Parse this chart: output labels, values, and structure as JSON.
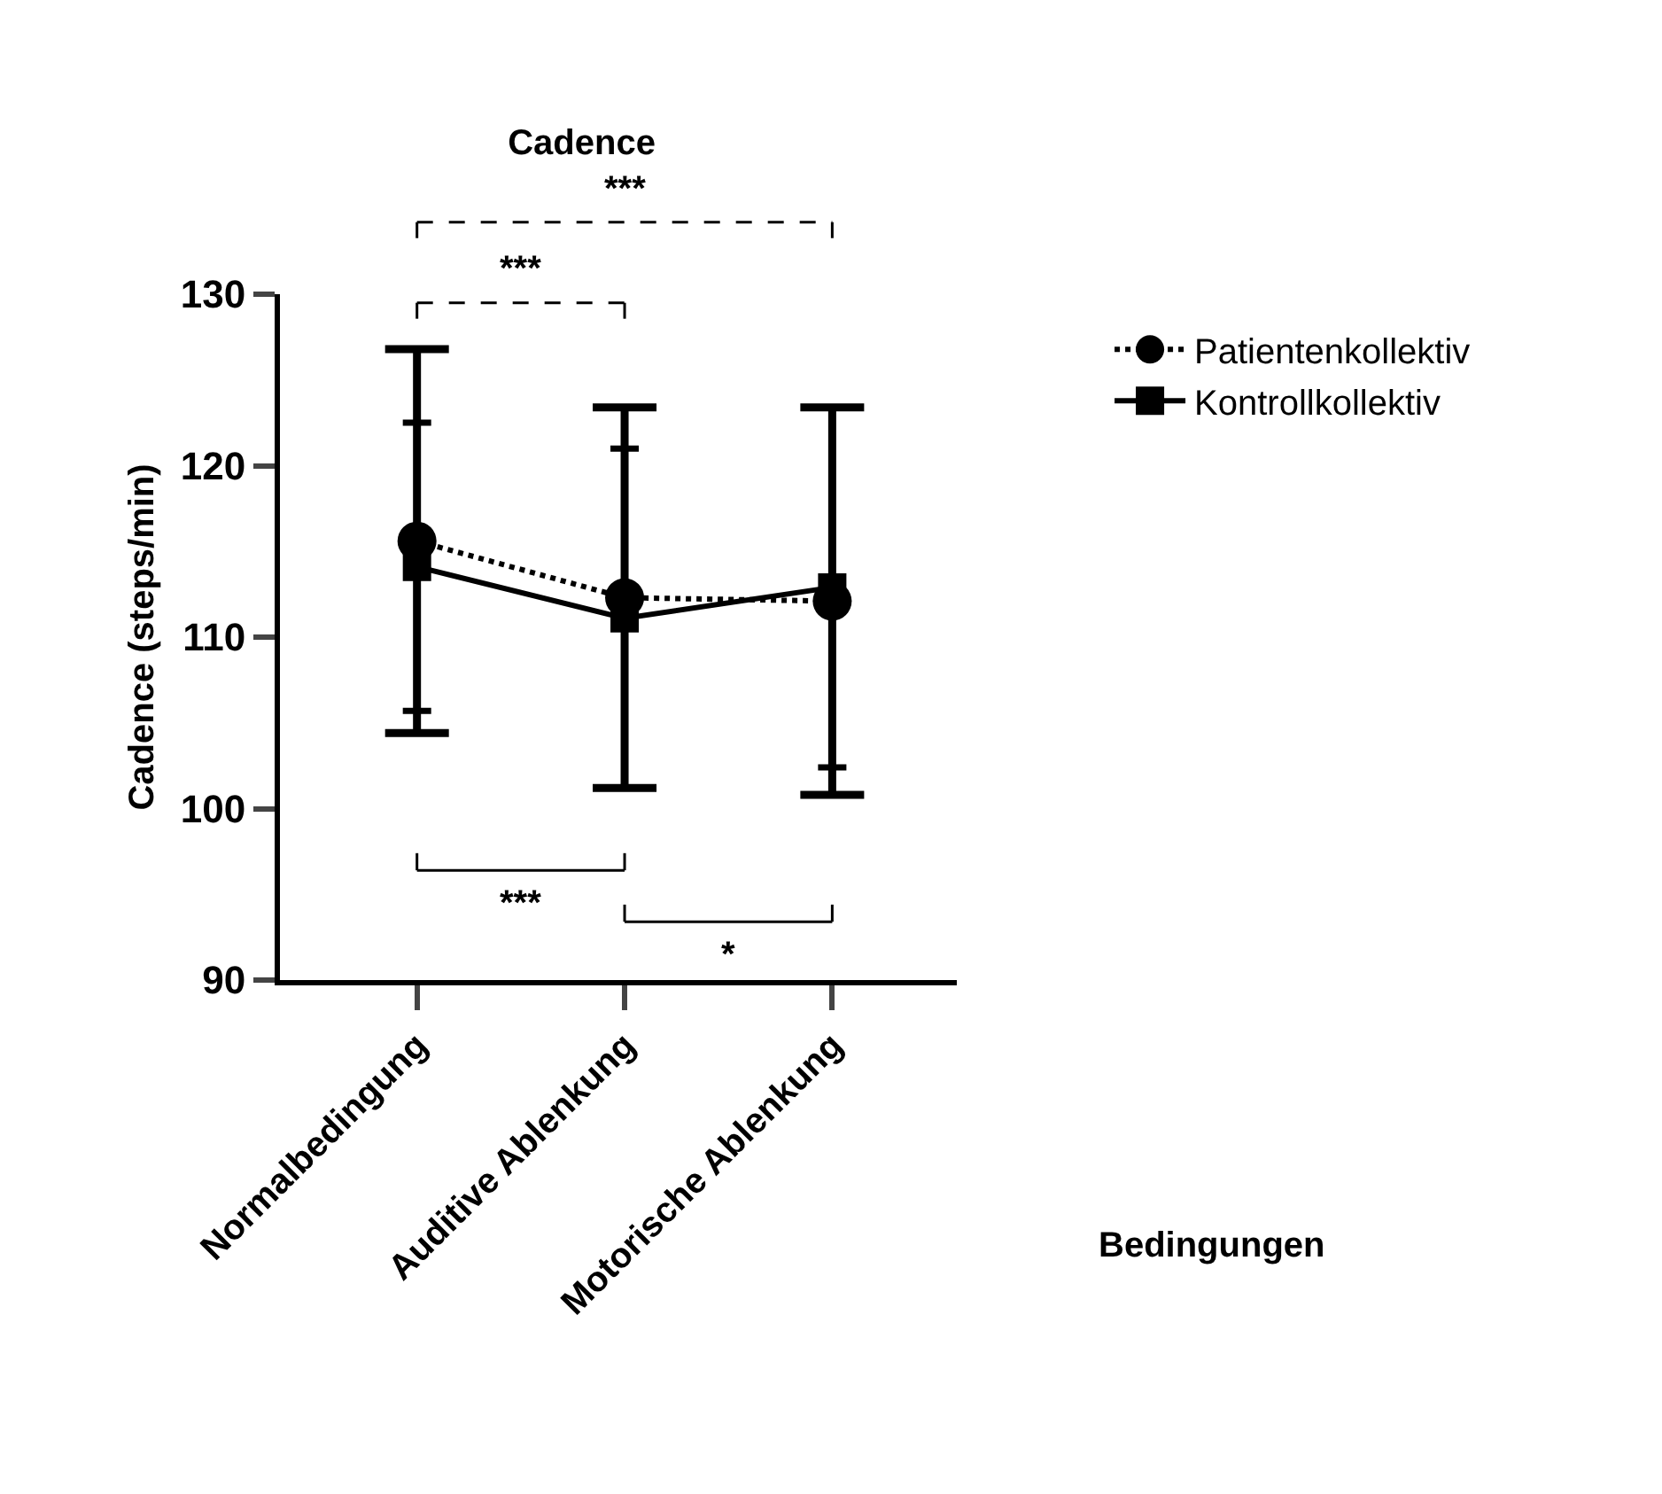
{
  "chart_data": {
    "type": "line",
    "title": "Cadence",
    "xlabel": "Bedingungen",
    "ylabel": "Cadence (steps/min)",
    "categories": [
      "Normalbedingung",
      "Auditive Ablenkung",
      "Motorische Ablenkung"
    ],
    "series": [
      {
        "name": "Patientenkollektiv",
        "color": "#000000",
        "values": [
          115.6,
          112.3,
          112.1
        ],
        "errors": [
          11.2,
          11.1,
          11.3
        ],
        "marker": "circle",
        "line_style": "dotted"
      },
      {
        "name": "Kontrollkollektiv",
        "color": "#000000",
        "values": [
          114.1,
          111.1,
          112.9
        ],
        "errors": [
          8.4,
          9.9,
          10.5
        ],
        "marker": "square",
        "line_style": "solid"
      }
    ],
    "ylim": [
      90,
      130
    ],
    "yticks": [
      90,
      100,
      110,
      120,
      130
    ],
    "legend": "top right",
    "annotations": [
      "***",
      "***",
      "***",
      "*"
    ]
  }
}
